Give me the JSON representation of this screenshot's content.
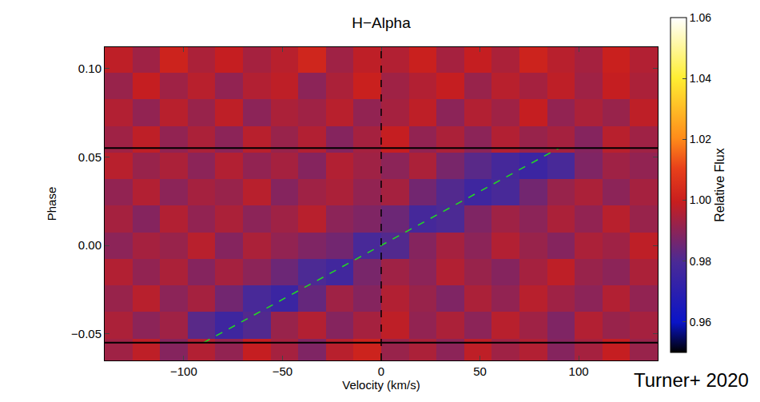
{
  "chart_data": {
    "type": "heatmap",
    "title": "H−Alpha",
    "x_label": "Velocity (km/s)",
    "y_label": "Phase",
    "x": [
      -133,
      -119,
      -105,
      -91,
      -77,
      -63,
      -49,
      -35,
      -21,
      -7,
      7,
      21,
      35,
      49,
      63,
      77,
      91,
      105,
      119,
      133
    ],
    "y": [
      -0.06,
      -0.045,
      -0.03,
      -0.015,
      0,
      0.015,
      0.03,
      0.045,
      0.06,
      0.075,
      0.09,
      0.105
    ],
    "z": [
      [
        0.993,
        0.998,
        0.989,
        0.996,
        0.991,
        0.999,
        0.994,
        0.988,
        0.997,
        1.001,
        0.992,
        0.995,
        0.99,
        0.998,
        0.993,
        0.996,
        0.989,
        0.994,
        0.999,
        0.992
      ],
      [
        0.995,
        0.99,
        0.993,
        0.982,
        0.976,
        0.981,
        0.992,
        0.996,
        0.989,
        0.994,
        0.998,
        0.991,
        0.995,
        0.99,
        0.997,
        0.993,
        0.988,
        0.996,
        0.992,
        0.994
      ],
      [
        0.992,
        0.997,
        0.99,
        0.994,
        0.986,
        0.979,
        0.975,
        0.984,
        0.993,
        0.989,
        0.996,
        0.992,
        0.988,
        0.995,
        0.991,
        0.997,
        0.993,
        0.99,
        0.996,
        0.991
      ],
      [
        0.996,
        0.991,
        0.995,
        0.989,
        0.994,
        0.99,
        0.985,
        0.98,
        0.977,
        0.987,
        0.993,
        0.99,
        0.996,
        0.992,
        0.989,
        0.994,
        0.998,
        0.992,
        0.99,
        0.995
      ],
      [
        0.99,
        0.994,
        0.992,
        0.997,
        0.989,
        0.995,
        0.991,
        0.988,
        0.986,
        0.979,
        0.981,
        0.989,
        0.994,
        0.99,
        0.996,
        0.992,
        0.989,
        0.995,
        0.993,
        0.998
      ],
      [
        0.994,
        0.989,
        0.996,
        0.991,
        0.995,
        0.99,
        0.993,
        0.997,
        0.99,
        0.988,
        0.985,
        0.978,
        0.98,
        0.988,
        0.993,
        0.99,
        0.995,
        0.991,
        0.997,
        0.992
      ],
      [
        0.991,
        0.996,
        0.99,
        0.994,
        0.992,
        0.997,
        0.989,
        0.993,
        0.995,
        0.991,
        0.994,
        0.986,
        0.981,
        0.976,
        0.979,
        0.986,
        0.992,
        0.995,
        0.99,
        0.994
      ],
      [
        0.997,
        0.992,
        0.995,
        0.99,
        0.996,
        0.991,
        0.994,
        0.989,
        0.996,
        0.993,
        0.99,
        0.995,
        0.987,
        0.982,
        0.978,
        0.975,
        0.979,
        0.988,
        0.993,
        0.991
      ],
      [
        0.993,
        0.998,
        0.991,
        0.995,
        0.99,
        0.997,
        0.992,
        0.996,
        0.989,
        0.994,
        0.999,
        0.991,
        0.995,
        0.99,
        0.996,
        0.992,
        0.994,
        0.989,
        0.997,
        0.993
      ],
      [
        0.996,
        0.991,
        0.997,
        0.992,
        0.998,
        0.99,
        0.995,
        0.993,
        0.997,
        0.991,
        0.994,
        0.998,
        0.99,
        0.996,
        0.993,
        0.999,
        0.991,
        0.995,
        0.992,
        0.998
      ],
      [
        0.992,
        0.999,
        0.993,
        0.997,
        0.991,
        0.996,
        0.998,
        0.99,
        0.995,
        1.0,
        0.993,
        0.996,
        0.999,
        0.992,
        0.997,
        0.994,
        0.998,
        0.993,
        0.999,
        0.995
      ],
      [
        0.998,
        0.993,
        1.001,
        0.995,
        0.999,
        0.994,
        0.997,
        1.002,
        0.993,
        0.998,
        0.996,
        1.0,
        0.994,
        0.999,
        0.995,
        1.001,
        0.997,
        0.994,
        1.0,
        0.996
      ]
    ],
    "zlim": [
      0.95,
      1.06
    ],
    "zticks": [
      0.96,
      0.98,
      {
        "value": 1,
        "label": "1.00"
      },
      1.02,
      1.04,
      1.06
    ],
    "colorbar_title": "Relative Flux",
    "xlim": [
      -140,
      140
    ],
    "xticks": [
      {
        "value": -100,
        "label": "−100"
      },
      {
        "value": -50,
        "label": "−50"
      },
      0,
      50,
      100
    ],
    "ylim": [
      -0.065,
      0.112
    ],
    "yticks": [
      {
        "value": -0.05,
        "label": "−0.05"
      },
      {
        "value": 0,
        "label": "0.00"
      },
      0.05,
      {
        "value": 0.1,
        "label": "0.10"
      }
    ],
    "hlines": [
      -0.055,
      0.055
    ],
    "vline": 0,
    "trail": {
      "x": [
        -90,
        90
      ],
      "y": [
        -0.055,
        0.055
      ]
    },
    "annotations": [
      "Turner+ 2020"
    ]
  }
}
